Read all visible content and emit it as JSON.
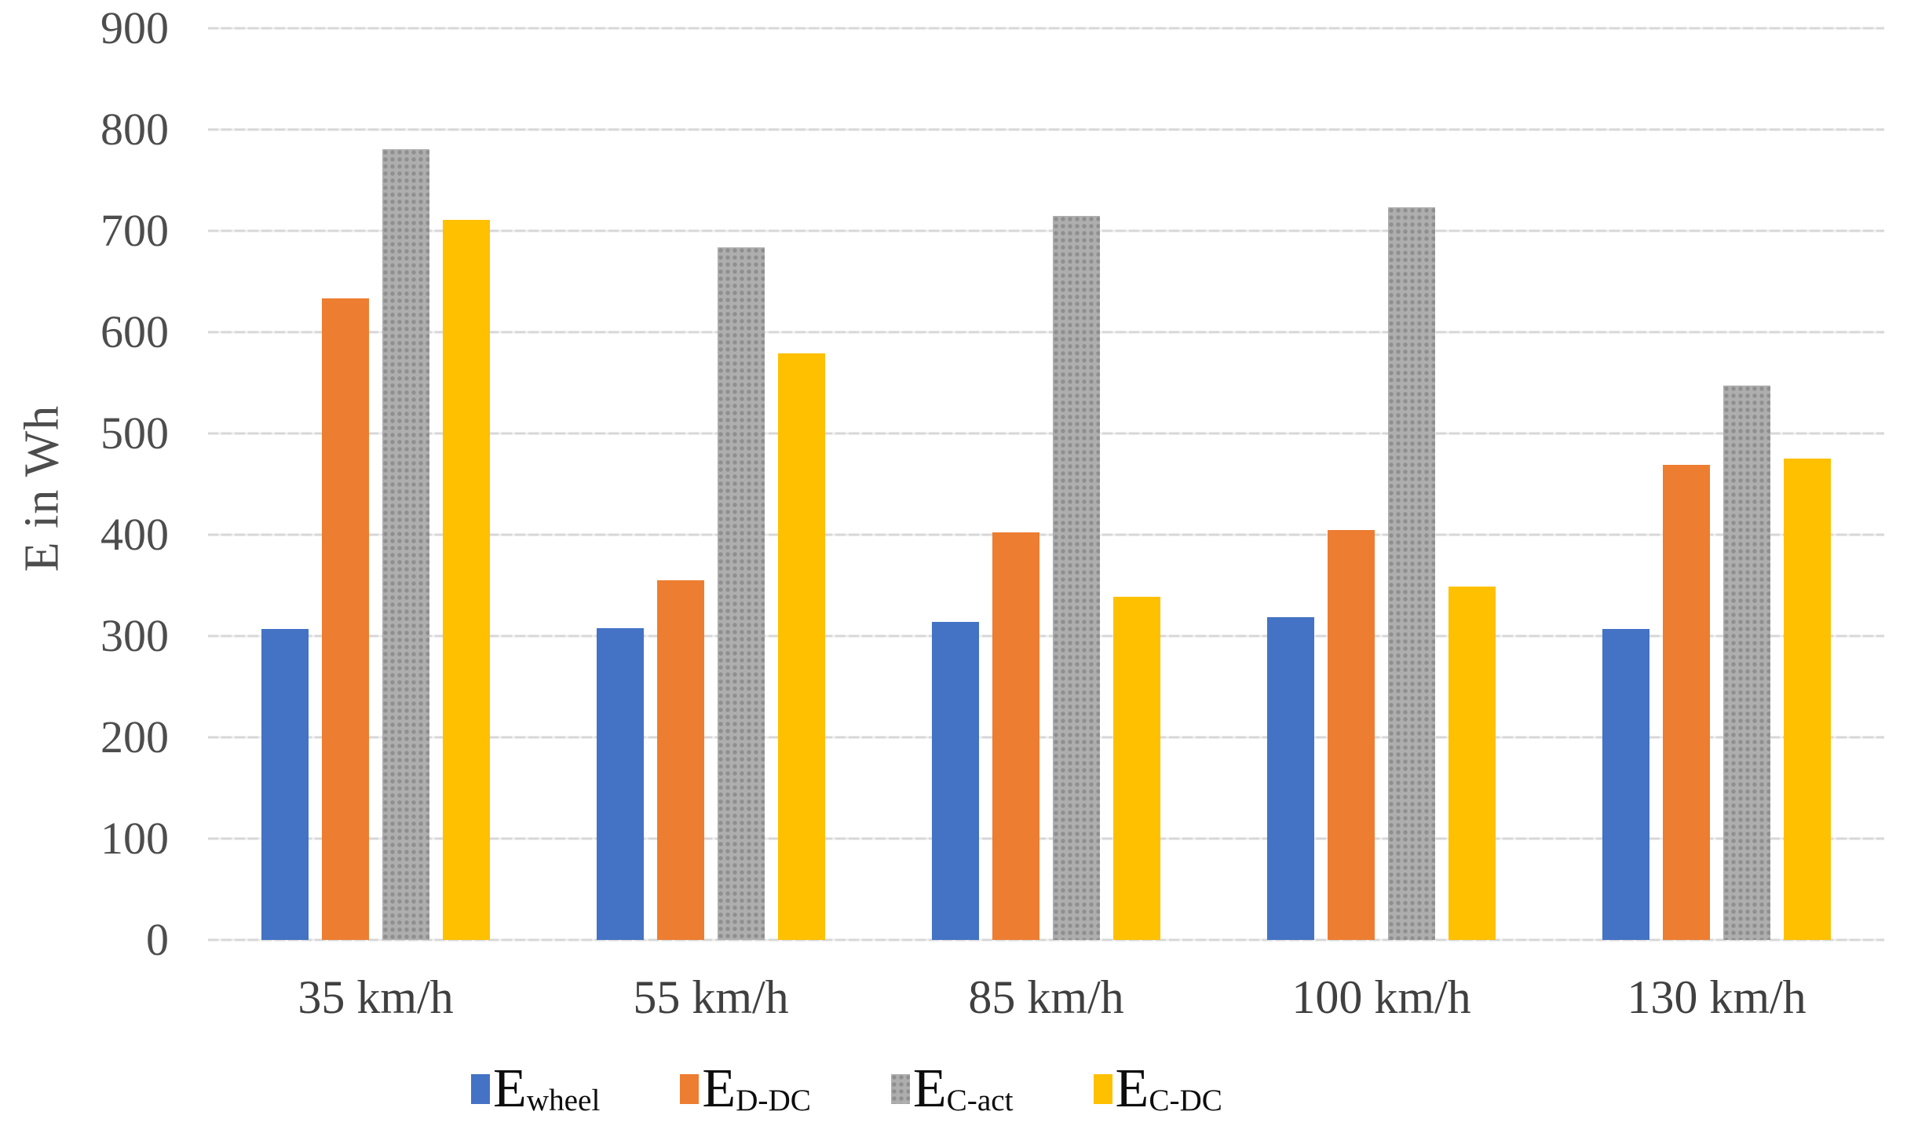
{
  "chart_data": {
    "type": "bar",
    "title": "",
    "xlabel": "",
    "ylabel": "E in Wh",
    "ylim": [
      0,
      900
    ],
    "ytick_step": 100,
    "yticks": [
      0,
      100,
      200,
      300,
      400,
      500,
      600,
      700,
      800,
      900
    ],
    "grid": true,
    "legend_position": "bottom",
    "categories": [
      "35 km/h",
      "55 km/h",
      "85 km/h",
      "100 km/h",
      "130 km/h"
    ],
    "series": [
      {
        "name": "Ewheel",
        "label_base": "E",
        "label_sub": "wheel",
        "color": "#4472C4",
        "pattern": "solid",
        "values": [
          307,
          308,
          314,
          319,
          307
        ]
      },
      {
        "name": "ED-DC",
        "label_base": "E",
        "label_sub": "D-DC",
        "color": "#ED7D31",
        "pattern": "solid",
        "values": [
          633,
          355,
          402,
          405,
          469
        ]
      },
      {
        "name": "EC-act",
        "label_base": "E",
        "label_sub": "C-act",
        "color": "#A6A6A6",
        "pattern": "dots",
        "values": [
          781,
          684,
          715,
          723,
          547
        ]
      },
      {
        "name": "EC-DC",
        "label_base": "E",
        "label_sub": "C-DC",
        "color": "#FFC000",
        "pattern": "solid",
        "values": [
          711,
          579,
          339,
          349,
          475
        ]
      }
    ]
  },
  "colors": {
    "gridline": "#D9D9D9",
    "axis_text": "#4D4D4D",
    "legend_text": "#0D0D0D",
    "background": "#FFFFFF"
  }
}
